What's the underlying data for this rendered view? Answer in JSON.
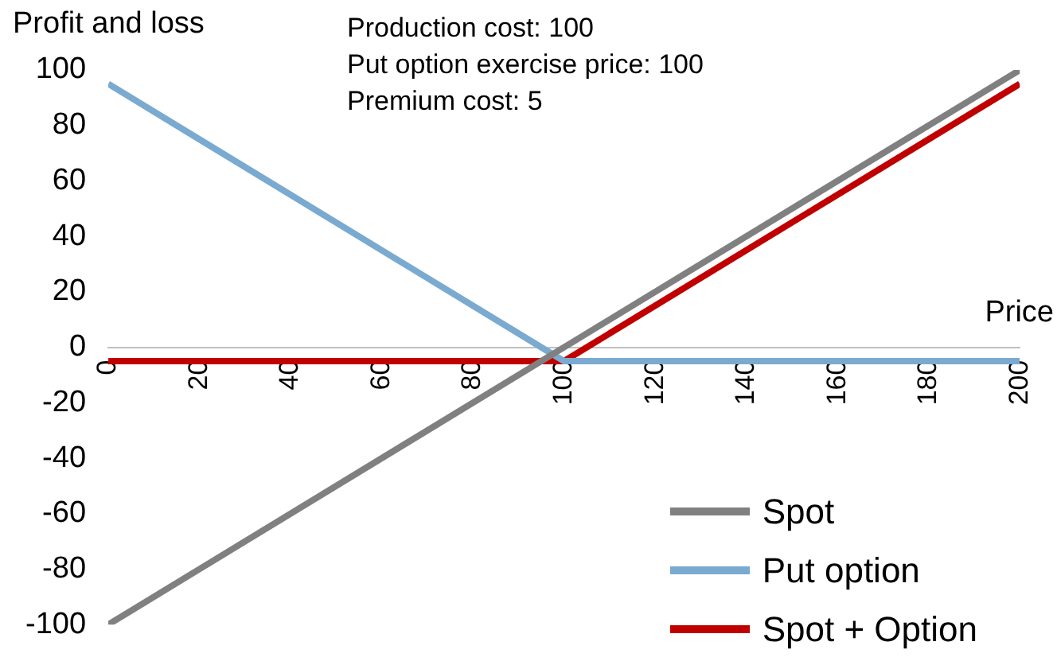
{
  "chart_data": {
    "type": "line",
    "xlabel": "Price",
    "ylabel": "Profit and loss",
    "annotations": [
      "Production cost: 100",
      "Put option exercise price: 100",
      "Premium cost: 5"
    ],
    "series": [
      {
        "name": "Spot",
        "color": "#808080",
        "x": [
          0,
          200
        ],
        "values": [
          -100,
          100
        ]
      },
      {
        "name": "Put option",
        "color": "#7aaad0",
        "x": [
          0,
          100,
          200
        ],
        "values": [
          95,
          -5,
          -5
        ]
      },
      {
        "name": "Spot + Option",
        "color": "#c00000",
        "x": [
          0,
          100,
          200
        ],
        "values": [
          -5,
          -5,
          95
        ]
      }
    ],
    "xlim": [
      0,
      200
    ],
    "xticks": [
      0,
      20,
      40,
      60,
      80,
      100,
      120,
      140,
      160,
      180,
      200
    ],
    "ylim": [
      -100,
      100
    ],
    "yticks": [
      -100,
      -80,
      -60,
      -40,
      -20,
      0,
      20,
      40,
      60,
      80,
      100
    ],
    "grid": false,
    "legend": "bottom right",
    "marker": "none",
    "line_style": "solid"
  }
}
